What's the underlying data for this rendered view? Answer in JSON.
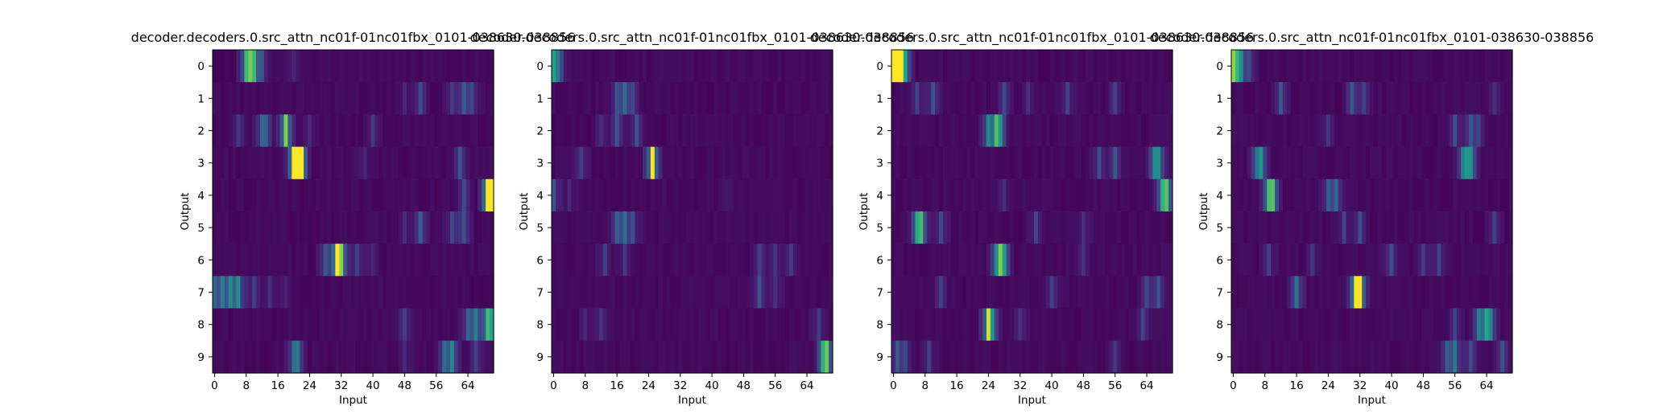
{
  "chart_data": [
    {
      "type": "heatmap",
      "title": "decoder.decoders.0.src_attn_nc01f-01nc01fbx_0101-038630-038856",
      "xlabel": "Input",
      "ylabel": "Output",
      "xticks": [
        0,
        8,
        16,
        24,
        32,
        40,
        48,
        56,
        64
      ],
      "yticks": [
        0,
        1,
        2,
        3,
        4,
        5,
        6,
        7,
        8,
        9
      ],
      "x_range": [
        0,
        70
      ],
      "rows": 10,
      "colormap": "viridis",
      "peaks": [
        [
          [
            8,
            0.55
          ],
          [
            9,
            0.45
          ],
          [
            10,
            0.5
          ],
          [
            12,
            0.25
          ],
          [
            20,
            0.1
          ]
        ],
        [
          [
            48,
            0.12
          ],
          [
            52,
            0.25
          ],
          [
            60,
            0.2
          ],
          [
            63,
            0.3
          ],
          [
            65,
            0.22
          ]
        ],
        [
          [
            6,
            0.2
          ],
          [
            12,
            0.3
          ],
          [
            13,
            0.25
          ],
          [
            18,
            0.85
          ],
          [
            24,
            0.1
          ],
          [
            40,
            0.15
          ]
        ],
        [
          [
            20,
            0.7
          ],
          [
            21,
            0.85
          ],
          [
            22,
            0.6
          ],
          [
            38,
            0.1
          ],
          [
            62,
            0.3
          ]
        ],
        [
          [
            63,
            0.25
          ],
          [
            69,
            0.95
          ],
          [
            70,
            0.7
          ]
        ],
        [
          [
            48,
            0.12
          ],
          [
            52,
            0.35
          ],
          [
            60,
            0.25
          ],
          [
            63,
            0.3
          ]
        ],
        [
          [
            28,
            0.3
          ],
          [
            31,
            0.9
          ],
          [
            32,
            0.55
          ],
          [
            36,
            0.2
          ],
          [
            40,
            0.1
          ]
        ],
        [
          [
            0,
            0.35
          ],
          [
            2,
            0.4
          ],
          [
            4,
            0.45
          ],
          [
            6,
            0.55
          ],
          [
            10,
            0.2
          ],
          [
            14,
            0.15
          ],
          [
            18,
            0.1
          ]
        ],
        [
          [
            48,
            0.2
          ],
          [
            64,
            0.3
          ],
          [
            66,
            0.45
          ],
          [
            69,
            0.6
          ],
          [
            70,
            0.5
          ]
        ],
        [
          [
            20,
            0.3
          ],
          [
            21,
            0.35
          ],
          [
            48,
            0.12
          ],
          [
            58,
            0.35
          ],
          [
            60,
            0.5
          ],
          [
            66,
            0.2
          ]
        ]
      ]
    },
    {
      "type": "heatmap",
      "title": "decoder.decoders.0.src_attn_nc01f-01nc01fbx_0101-038630-038856",
      "xlabel": "Input",
      "ylabel": "Output",
      "xticks": [
        0,
        8,
        16,
        24,
        32,
        40,
        48,
        56,
        64
      ],
      "yticks": [
        0,
        1,
        2,
        3,
        4,
        5,
        6,
        7,
        8,
        9
      ],
      "x_range": [
        0,
        70
      ],
      "rows": 10,
      "colormap": "viridis",
      "peaks": [
        [
          [
            0,
            0.6
          ],
          [
            1,
            0.25
          ],
          [
            2,
            0.1
          ]
        ],
        [
          [
            16,
            0.25
          ],
          [
            18,
            0.35
          ],
          [
            20,
            0.2
          ]
        ],
        [
          [
            12,
            0.15
          ],
          [
            16,
            0.3
          ],
          [
            21,
            0.3
          ]
        ],
        [
          [
            7,
            0.2
          ],
          [
            25,
            1.0
          ]
        ],
        [
          [
            0,
            0.3
          ],
          [
            4,
            0.1
          ],
          [
            44,
            0.05
          ]
        ],
        [
          [
            16,
            0.3
          ],
          [
            18,
            0.35
          ],
          [
            20,
            0.25
          ]
        ],
        [
          [
            13,
            0.2
          ],
          [
            18,
            0.15
          ],
          [
            52,
            0.2
          ],
          [
            56,
            0.15
          ],
          [
            60,
            0.2
          ]
        ],
        [
          [
            52,
            0.3
          ],
          [
            56,
            0.15
          ]
        ],
        [
          [
            8,
            0.1
          ],
          [
            12,
            0.15
          ],
          [
            67,
            0.2
          ]
        ],
        [
          [
            68,
            0.5
          ],
          [
            69,
            0.65
          ]
        ]
      ]
    },
    {
      "type": "heatmap",
      "title": "decoder.decoders.0.src_attn_nc01f-01nc01fbx_0101-038630-038856",
      "xlabel": "Input",
      "ylabel": "Output",
      "xticks": [
        0,
        8,
        16,
        24,
        32,
        40,
        48,
        56,
        64
      ],
      "yticks": [
        0,
        1,
        2,
        3,
        4,
        5,
        6,
        7,
        8,
        9
      ],
      "x_range": [
        0,
        70
      ],
      "rows": 10,
      "colormap": "viridis",
      "peaks": [
        [
          [
            0,
            0.8
          ],
          [
            1,
            0.9
          ],
          [
            2,
            0.6
          ],
          [
            3,
            0.4
          ]
        ],
        [
          [
            6,
            0.2
          ],
          [
            10,
            0.3
          ],
          [
            28,
            0.25
          ],
          [
            34,
            0.15
          ],
          [
            44,
            0.2
          ],
          [
            56,
            0.2
          ]
        ],
        [
          [
            24,
            0.5
          ],
          [
            26,
            0.55
          ],
          [
            27,
            0.45
          ]
        ],
        [
          [
            52,
            0.25
          ],
          [
            56,
            0.3
          ],
          [
            66,
            0.4
          ],
          [
            67,
            0.45
          ]
        ],
        [
          [
            28,
            0.15
          ],
          [
            68,
            0.55
          ],
          [
            69,
            0.6
          ]
        ],
        [
          [
            6,
            0.5
          ],
          [
            7,
            0.6
          ],
          [
            12,
            0.25
          ],
          [
            36,
            0.2
          ],
          [
            48,
            0.15
          ]
        ],
        [
          [
            26,
            0.35
          ],
          [
            27,
            0.55
          ],
          [
            28,
            0.45
          ],
          [
            48,
            0.15
          ]
        ],
        [
          [
            12,
            0.2
          ],
          [
            40,
            0.2
          ],
          [
            64,
            0.25
          ],
          [
            67,
            0.3
          ]
        ],
        [
          [
            24,
            0.8
          ],
          [
            25,
            0.35
          ],
          [
            32,
            0.15
          ],
          [
            63,
            0.2
          ]
        ],
        [
          [
            1,
            0.3
          ],
          [
            3,
            0.2
          ],
          [
            9,
            0.2
          ],
          [
            56,
            0.15
          ]
        ]
      ]
    },
    {
      "type": "heatmap",
      "title": "decoder.decoders.0.src_attn_nc01f-01nc01fbx_0101-038630-038856",
      "xlabel": "Input",
      "ylabel": "Output",
      "xticks": [
        0,
        8,
        16,
        24,
        32,
        40,
        48,
        56,
        64
      ],
      "yticks": [
        0,
        1,
        2,
        3,
        4,
        5,
        6,
        7,
        8,
        9
      ],
      "x_range": [
        0,
        70
      ],
      "rows": 10,
      "colormap": "viridis",
      "peaks": [
        [
          [
            0,
            0.7
          ],
          [
            1,
            0.4
          ],
          [
            2,
            0.3
          ],
          [
            4,
            0.2
          ]
        ],
        [
          [
            12,
            0.3
          ],
          [
            30,
            0.3
          ],
          [
            33,
            0.2
          ],
          [
            66,
            0.15
          ]
        ],
        [
          [
            24,
            0.15
          ],
          [
            56,
            0.25
          ],
          [
            60,
            0.3
          ],
          [
            62,
            0.2
          ]
        ],
        [
          [
            6,
            0.3
          ],
          [
            7,
            0.5
          ],
          [
            58,
            0.35
          ],
          [
            59,
            0.35
          ],
          [
            60,
            0.45
          ]
        ],
        [
          [
            9,
            0.55
          ],
          [
            10,
            0.6
          ],
          [
            24,
            0.3
          ],
          [
            26,
            0.35
          ]
        ],
        [
          [
            28,
            0.2
          ],
          [
            32,
            0.25
          ],
          [
            66,
            0.2
          ]
        ],
        [
          [
            9,
            0.2
          ],
          [
            20,
            0.15
          ],
          [
            40,
            0.25
          ],
          [
            48,
            0.2
          ],
          [
            52,
            0.2
          ]
        ],
        [
          [
            16,
            0.45
          ],
          [
            31,
            0.9
          ],
          [
            32,
            0.7
          ]
        ],
        [
          [
            56,
            0.2
          ],
          [
            62,
            0.45
          ],
          [
            64,
            0.55
          ],
          [
            65,
            0.35
          ]
        ],
        [
          [
            54,
            0.3
          ],
          [
            56,
            0.45
          ],
          [
            60,
            0.25
          ],
          [
            68,
            0.3
          ]
        ]
      ]
    }
  ]
}
